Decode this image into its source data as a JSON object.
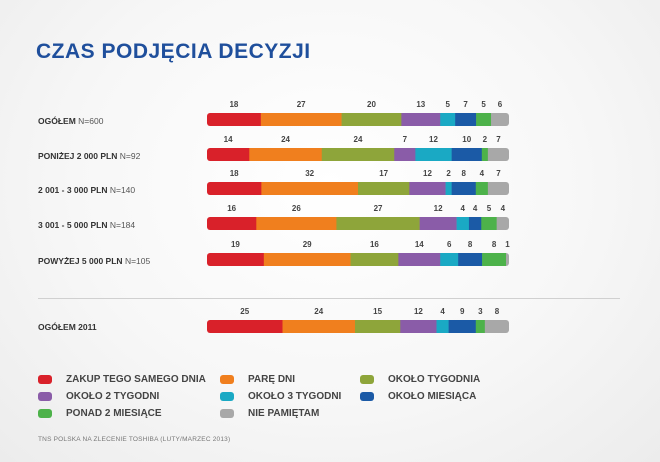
{
  "title": "CZAS PODJĘCIA DECYZJI",
  "source_note": "TNS POLSKA NA ZLECENIE TOSHIBA (LUTY/MARZEC 2013)",
  "colors": [
    "#d9212a",
    "#f07f1e",
    "#8ea53a",
    "#8a5ca8",
    "#1aa9c4",
    "#1b5aa6",
    "#4db24a",
    "#a8a8a8"
  ],
  "chart_data": {
    "type": "bar",
    "orientation": "horizontal-stacked-100",
    "series": [
      {
        "name": "ZAKUP TEGO SAMEGO DNIA"
      },
      {
        "name": "PARĘ DNI"
      },
      {
        "name": "OKOŁO TYGODNIA"
      },
      {
        "name": "OKOŁO 2 TYGODNI"
      },
      {
        "name": "OKOŁO 3 TYGODNI"
      },
      {
        "name": "OKOŁO MIESIĄCA"
      },
      {
        "name": "PONAD 2 MIESIĄCE"
      },
      {
        "name": "NIE PAMIĘTAM"
      }
    ],
    "rows": [
      {
        "label": "OGÓŁEM",
        "n": "N=600",
        "values": [
          18,
          27,
          20,
          13,
          5,
          7,
          5,
          6
        ]
      },
      {
        "label": "PONIŻEJ 2 000 PLN",
        "n": "N=92",
        "values": [
          14,
          24,
          24,
          7,
          12,
          10,
          2,
          7
        ]
      },
      {
        "label": "2 001 - 3 000 PLN",
        "n": "N=140",
        "values": [
          18,
          32,
          17,
          12,
          2,
          8,
          4,
          7
        ]
      },
      {
        "label": "3 001 - 5 000 PLN",
        "n": "N=184",
        "values": [
          16,
          26,
          27,
          12,
          4,
          4,
          5,
          4
        ]
      },
      {
        "label": "POWYŻEJ 5 000 PLN",
        "n": "N=105",
        "values": [
          19,
          29,
          16,
          14,
          6,
          8,
          8,
          1
        ]
      },
      {
        "label": "OGÓŁEM 2011",
        "n": "",
        "values": [
          25,
          24,
          15,
          12,
          4,
          9,
          3,
          8
        ]
      }
    ]
  }
}
